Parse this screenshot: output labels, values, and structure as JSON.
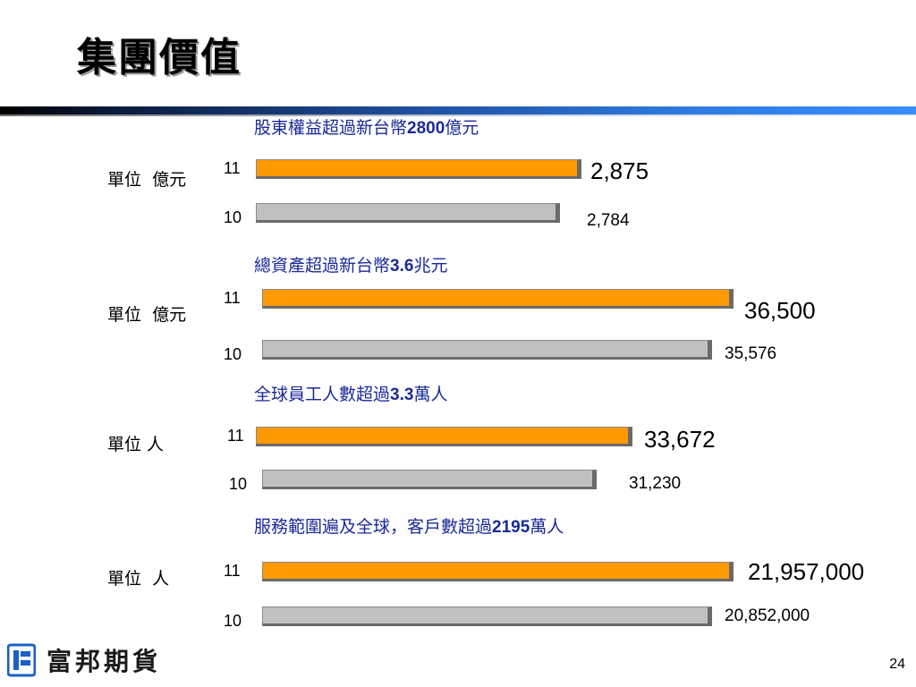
{
  "title": "集團價值",
  "page_number": "24",
  "logo": {
    "text": "富邦期貨"
  },
  "colors": {
    "current_year": "#ff9900",
    "previous_year": "#c0c0c0",
    "caption": "#1a2a9a"
  },
  "chart_data": [
    {
      "type": "bar",
      "orientation": "horizontal",
      "caption": {
        "pre": "股東權益超過新台幣",
        "num": "2800",
        "post": "億元"
      },
      "unit_label": "單位  億元",
      "categories": [
        "11",
        "10"
      ],
      "values": [
        2875,
        2784
      ],
      "value_labels": [
        "2,875",
        "2,784"
      ]
    },
    {
      "type": "bar",
      "orientation": "horizontal",
      "caption": {
        "pre": "總資產超過新台幣",
        "num": "3.6",
        "post": "兆元"
      },
      "unit_label": "單位  億元",
      "categories": [
        "11",
        "10"
      ],
      "values": [
        36500,
        35576
      ],
      "value_labels": [
        "36,500",
        "35,576"
      ]
    },
    {
      "type": "bar",
      "orientation": "horizontal",
      "caption": {
        "pre": "全球員工人數超過",
        "num": "3.3",
        "post": "萬人"
      },
      "unit_label": "單位 人",
      "categories": [
        "11",
        "10"
      ],
      "values": [
        33672,
        31230
      ],
      "value_labels": [
        "33,672",
        "31,230"
      ]
    },
    {
      "type": "bar",
      "orientation": "horizontal",
      "caption": {
        "pre": "服務範圍遍及全球，客戶數超過",
        "num": "2195",
        "post": "萬人"
      },
      "unit_label": "單位  人",
      "categories": [
        "11",
        "10"
      ],
      "values": [
        21957000,
        20852000
      ],
      "value_labels": [
        "21,957,000",
        "20,852,000"
      ]
    }
  ]
}
